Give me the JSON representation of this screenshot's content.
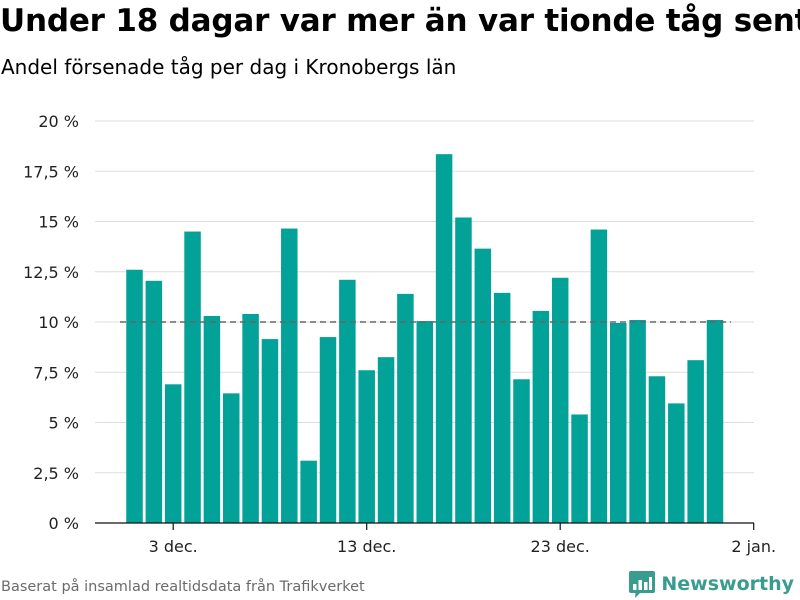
{
  "title": "Under 18 dagar var mer än var tionde tåg sent",
  "subtitle": "Andel försenade tåg per dag i Kronobergs län",
  "source": "Baserat på insamlad realtidsdata från Trafikverket",
  "brand": {
    "name": "Newsworthy",
    "color": "#3a9c8e",
    "icon": "bar-chart-speech-bubble-icon"
  },
  "colors": {
    "bar": "#02a298",
    "reference_line": "#666666",
    "grid": "#dddddd"
  },
  "chart_data": {
    "type": "bar",
    "title": "Under 18 dagar var mer än var tionde tåg sent",
    "subtitle": "Andel försenade tåg per dag i Kronobergs län",
    "xlabel": "",
    "ylabel": "",
    "x_unit": "day",
    "categories": [
      "2023-12-01",
      "2023-12-02",
      "2023-12-03",
      "2023-12-04",
      "2023-12-05",
      "2023-12-06",
      "2023-12-07",
      "2023-12-08",
      "2023-12-09",
      "2023-12-10",
      "2023-12-11",
      "2023-12-12",
      "2023-12-13",
      "2023-12-14",
      "2023-12-15",
      "2023-12-16",
      "2023-12-17",
      "2023-12-18",
      "2023-12-19",
      "2023-12-20",
      "2023-12-21",
      "2023-12-22",
      "2023-12-23",
      "2023-12-24",
      "2023-12-25",
      "2023-12-26",
      "2023-12-27",
      "2023-12-28",
      "2023-12-29",
      "2023-12-30",
      "2023-12-31"
    ],
    "values": [
      12.6,
      12.05,
      6.9,
      14.5,
      10.3,
      6.45,
      10.4,
      9.15,
      14.65,
      3.1,
      9.25,
      12.1,
      7.6,
      8.25,
      11.4,
      10.05,
      18.35,
      15.2,
      13.65,
      11.45,
      7.15,
      10.55,
      12.2,
      5.4,
      14.6,
      9.95,
      10.1,
      7.3,
      5.95,
      8.1,
      10.1
    ],
    "ylim": [
      0,
      20
    ],
    "yticks": [
      0,
      2.5,
      5,
      7.5,
      10,
      12.5,
      15,
      17.5,
      20
    ],
    "ytick_labels": [
      "0 %",
      "2,5 %",
      "5 %",
      "7,5 %",
      "10 %",
      "12,5 %",
      "15 %",
      "17,5 %",
      "20 %"
    ],
    "xticks": [
      {
        "date": "2023-12-03",
        "label": "3 dec."
      },
      {
        "date": "2023-12-13",
        "label": "13 dec."
      },
      {
        "date": "2023-12-23",
        "label": "23 dec."
      },
      {
        "date": "2024-01-02",
        "label": "2 jan."
      }
    ],
    "reference_line": {
      "value": 10,
      "style": "dashed"
    },
    "grid": true,
    "legend": "none"
  }
}
